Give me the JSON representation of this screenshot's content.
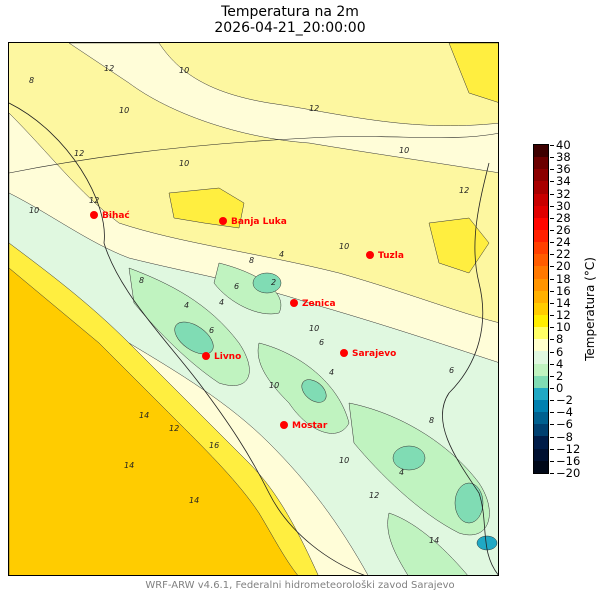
{
  "title": {
    "line1": "Temperatura na 2m",
    "line2": "2026-04-21_20:00:00"
  },
  "footer": "WRF-ARW v4.6.1, Federalni hidrometeorološki zavod Sarajevo",
  "colorbar": {
    "label": "Temperatura (°C)",
    "ticks": [
      "40",
      "38",
      "36",
      "34",
      "32",
      "30",
      "28",
      "26",
      "24",
      "22",
      "20",
      "18",
      "16",
      "14",
      "12",
      "10",
      "8",
      "6",
      "4",
      "2",
      "0",
      "−2",
      "−4",
      "−6",
      "−8",
      "−12",
      "−16",
      "−20"
    ],
    "colors": [
      "#3d0000",
      "#6b0000",
      "#8b0000",
      "#a80000",
      "#c80000",
      "#e00000",
      "#ff0500",
      "#ff2000",
      "#ff4000",
      "#ff5c00",
      "#ff7800",
      "#ff9400",
      "#ffb000",
      "#ffcc00",
      "#ffee00",
      "#ffff66",
      "#ffffcc",
      "#e0f8e0",
      "#c0f3c0",
      "#80dcb4",
      "#20a8c4",
      "#0080b0",
      "#00608f",
      "#004070",
      "#001c48",
      "#001030",
      "#000818"
    ]
  },
  "map_colors": {
    "sea": "#ffcc00",
    "t12_14": "#ffee40",
    "t10_12": "#fdf7a0",
    "t8_10": "#fffdd8",
    "t6_8": "#e0f8e0",
    "t4_6": "#c0f3c0",
    "t2_4": "#80dcb4",
    "t0_2": "#20a8c4"
  },
  "cities": [
    {
      "name": "Bihać"
    },
    {
      "name": "Banja Luka"
    },
    {
      "name": "Tuzla"
    },
    {
      "name": "Zenica"
    },
    {
      "name": "Livno"
    },
    {
      "name": "Sarajevo"
    },
    {
      "name": "Mostar"
    }
  ],
  "contour_labels": [
    "12",
    "10",
    "8",
    "10",
    "12",
    "10",
    "12",
    "10",
    "12",
    "12",
    "10",
    "6",
    "8",
    "4",
    "6",
    "4",
    "8",
    "10",
    "10",
    "4",
    "6",
    "4",
    "2",
    "10",
    "14",
    "16",
    "12",
    "14",
    "14",
    "14",
    "12",
    "10",
    "8",
    "6",
    "4"
  ]
}
